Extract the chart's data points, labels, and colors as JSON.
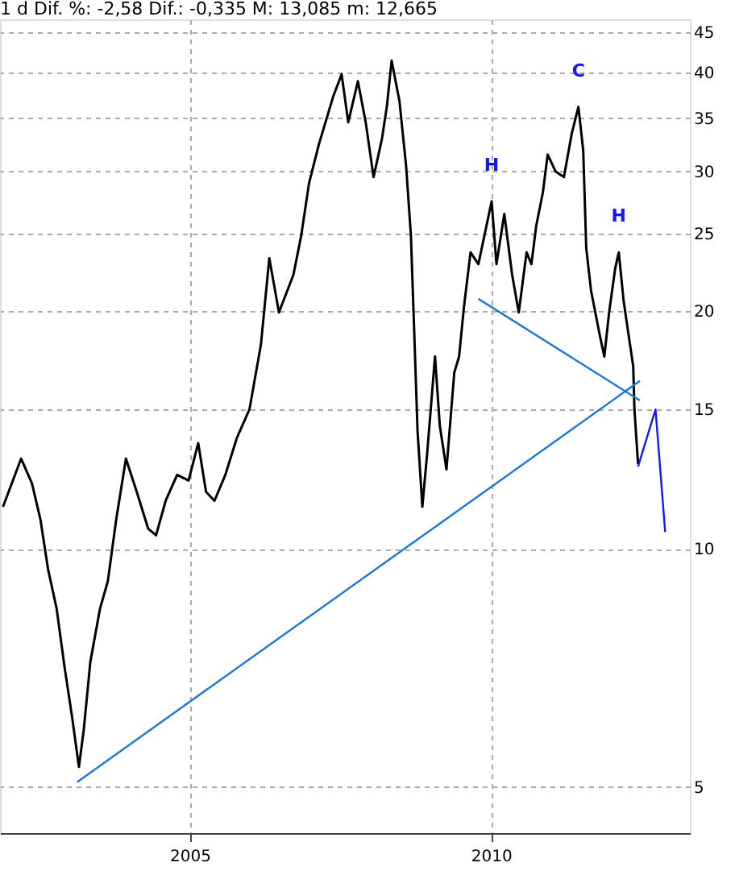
{
  "chart_data": {
    "type": "line",
    "title": "1 d Dif. %: -2,58 Dif.: -0,335 M: 13,085 m: 12,665",
    "log": "y",
    "grid": true,
    "xlim": [
      2001.85,
      2013.3
    ],
    "xticks": [
      2005,
      2010
    ],
    "ylim": [
      4.37,
      46.7
    ],
    "yticks": [
      5,
      10,
      15,
      20,
      25,
      30,
      35,
      40,
      45
    ],
    "series": [
      {
        "color": "#000000",
        "x": [
          2001.9,
          2002.2,
          2002.38,
          2002.52,
          2002.65,
          2002.79,
          2002.92,
          2003.05,
          2003.16,
          2003.24,
          2003.35,
          2003.51,
          2003.64,
          2003.78,
          2003.94,
          2004.12,
          2004.31,
          2004.44,
          2004.6,
          2004.79,
          2004.98,
          2005.14,
          2005.27,
          2005.41,
          2005.59,
          2005.78,
          2005.99,
          2006.18,
          2006.32,
          2006.48,
          2006.72,
          2006.85,
          2006.98,
          2007.14,
          2007.38,
          2007.52,
          2007.63,
          2007.79,
          2007.92,
          2008.05,
          2008.19,
          2008.27,
          2008.35,
          2008.48,
          2008.59,
          2008.67,
          2008.72,
          2008.78,
          2008.86,
          2008.94,
          2009.07,
          2009.15,
          2009.26,
          2009.39,
          2009.47,
          2009.55,
          2009.66,
          2009.79,
          2010.01,
          2010.09,
          2010.22,
          2010.35,
          2010.46,
          2010.59,
          2010.67,
          2010.75,
          2010.86,
          2010.94,
          2011.07,
          2011.21,
          2011.34,
          2011.45,
          2011.53,
          2011.58,
          2011.66,
          2011.8,
          2011.88,
          2011.96,
          2012.06,
          2012.12,
          2012.2,
          2012.28,
          2012.36,
          2012.38,
          2012.44
        ],
        "values": [
          11.3,
          13.0,
          12.1,
          10.9,
          9.4,
          8.4,
          7.1,
          6.1,
          5.3,
          5.9,
          7.2,
          8.4,
          9.1,
          10.9,
          13.0,
          11.8,
          10.6,
          10.4,
          11.5,
          12.4,
          12.2,
          13.6,
          11.8,
          11.5,
          12.4,
          13.8,
          15.0,
          18.1,
          23.3,
          19.9,
          22.2,
          24.9,
          29.0,
          32.4,
          37.3,
          39.8,
          34.6,
          39.0,
          34.6,
          29.5,
          33.0,
          36.2,
          41.4,
          36.8,
          30.5,
          24.9,
          19.3,
          14.1,
          11.3,
          13.2,
          17.5,
          14.3,
          12.6,
          16.7,
          17.5,
          20.2,
          23.7,
          22.9,
          27.5,
          22.9,
          26.5,
          22.2,
          19.9,
          23.7,
          22.9,
          25.6,
          28.2,
          31.5,
          30.0,
          29.5,
          33.5,
          36.2,
          31.9,
          24.0,
          21.2,
          18.7,
          17.5,
          19.9,
          22.6,
          23.7,
          20.6,
          18.7,
          17.0,
          15.0,
          12.8
        ]
      },
      {
        "type": "line",
        "color": "#1e78d2",
        "x": [
          2003.13,
          2012.47
        ],
        "values": [
          5.07,
          16.3
        ]
      },
      {
        "type": "line",
        "color": "#1e78d2",
        "x": [
          2009.79,
          2012.47
        ],
        "values": [
          20.7,
          15.4
        ]
      },
      {
        "type": "line",
        "color": "#1414ff",
        "x": [
          2012.44,
          2012.73,
          2012.89
        ],
        "values": [
          12.7,
          15.0,
          10.5
        ]
      }
    ],
    "annotations": [
      {
        "text": "H",
        "x": 2010.01,
        "y": 27.5
      },
      {
        "text": "C",
        "x": 2011.45,
        "y": 36.2
      },
      {
        "text": "H",
        "x": 2012.12,
        "y": 23.7
      }
    ]
  }
}
